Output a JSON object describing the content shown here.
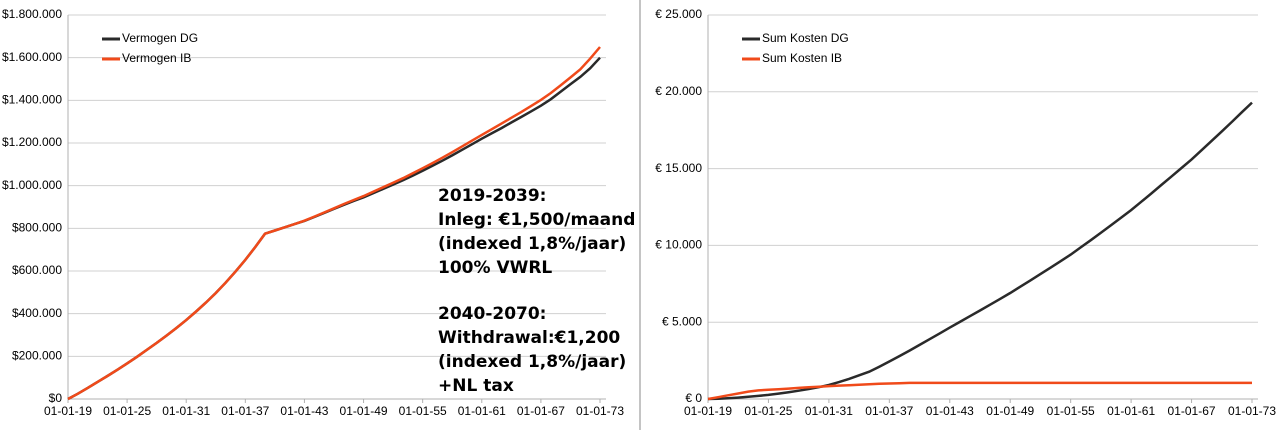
{
  "chart_data": [
    {
      "type": "line",
      "categories": [
        "01-01-19",
        null,
        null,
        null,
        null,
        null,
        "01-01-25",
        null,
        null,
        null,
        null,
        null,
        "01-01-31",
        null,
        null,
        null,
        null,
        null,
        "01-01-37",
        null,
        null,
        null,
        null,
        null,
        "01-01-43",
        null,
        null,
        null,
        null,
        null,
        "01-01-49",
        null,
        null,
        null,
        null,
        null,
        "01-01-55",
        null,
        null,
        null,
        null,
        null,
        "01-01-61",
        null,
        null,
        null,
        null,
        null,
        "01-01-67",
        null,
        null,
        null,
        null,
        null,
        "01-01-73"
      ],
      "series": [
        {
          "name": "Vermogen DG",
          "color": "#2a2a2a",
          "values": [
            0,
            25000,
            52000,
            80000,
            108000,
            137000,
            167000,
            198000,
            230000,
            263000,
            297000,
            333000,
            370000,
            410000,
            452000,
            497000,
            545000,
            597000,
            652000,
            712000,
            775000,
            790000,
            805000,
            820000,
            835000,
            853000,
            872000,
            891000,
            910000,
            928000,
            945000,
            965000,
            985000,
            1005000,
            1025000,
            1047000,
            1070000,
            1093000,
            1117000,
            1142000,
            1168000,
            1194000,
            1220000,
            1245000,
            1270000,
            1296000,
            1322000,
            1348000,
            1375000,
            1405000,
            1440000,
            1475000,
            1510000,
            1550000,
            1600000
          ]
        },
        {
          "name": "Vermogen IB",
          "color": "#f04a1a",
          "values": [
            0,
            25000,
            52000,
            80000,
            108000,
            137000,
            167000,
            198000,
            230000,
            263000,
            297000,
            333000,
            370000,
            410000,
            452000,
            497000,
            545000,
            597000,
            652000,
            712000,
            775000,
            790000,
            805000,
            820000,
            836000,
            855000,
            874000,
            894000,
            914000,
            933000,
            951000,
            972000,
            993000,
            1014000,
            1035000,
            1058000,
            1082000,
            1106000,
            1131000,
            1157000,
            1184000,
            1211000,
            1238000,
            1264000,
            1291000,
            1318000,
            1345000,
            1373000,
            1402000,
            1434000,
            1470000,
            1507000,
            1545000,
            1595000,
            1650000
          ]
        }
      ],
      "ylim": [
        0,
        1800000
      ],
      "yticks": [
        {
          "value": 0,
          "label": "$0"
        },
        {
          "value": 200000,
          "label": "$200.000"
        },
        {
          "value": 400000,
          "label": "$400.000"
        },
        {
          "value": 600000,
          "label": "$600.000"
        },
        {
          "value": 800000,
          "label": "$800.000"
        },
        {
          "value": 1000000,
          "label": "$1.000.000"
        },
        {
          "value": 1200000,
          "label": "$1.200.000"
        },
        {
          "value": 1400000,
          "label": "$1.400.000"
        },
        {
          "value": 1600000,
          "label": "$1.600.000"
        },
        {
          "value": 1800000,
          "label": "$1.800.000"
        }
      ],
      "grid": true,
      "annotations": [
        "2019-2039:",
        "Inleg: €1,500/maand",
        "(indexed 1,8%/jaar)",
        "100% VWRL",
        "2040-2070:",
        "Withdrawal:€1,200",
        "(indexed 1,8%/jaar)",
        "+NL tax"
      ]
    },
    {
      "type": "line",
      "categories": [
        "01-01-19",
        null,
        null,
        null,
        null,
        null,
        "01-01-25",
        null,
        null,
        null,
        null,
        null,
        "01-01-31",
        null,
        null,
        null,
        null,
        null,
        "01-01-37",
        null,
        null,
        null,
        null,
        null,
        "01-01-43",
        null,
        null,
        null,
        null,
        null,
        "01-01-49",
        null,
        null,
        null,
        null,
        null,
        "01-01-55",
        null,
        null,
        null,
        null,
        null,
        "01-01-61",
        null,
        null,
        null,
        null,
        null,
        "01-01-67",
        null,
        null,
        null,
        null,
        null,
        "01-01-73"
      ],
      "series": [
        {
          "name": "Sum Kosten DG",
          "color": "#2a2a2a",
          "values": [
            0,
            20,
            50,
            90,
            140,
            200,
            270,
            350,
            440,
            540,
            650,
            770,
            910,
            1100,
            1310,
            1540,
            1780,
            2100,
            2440,
            2790,
            3150,
            3520,
            3890,
            4270,
            4650,
            5020,
            5390,
            5760,
            6140,
            6520,
            6900,
            7310,
            7720,
            8130,
            8550,
            8970,
            9400,
            9870,
            10340,
            10820,
            11310,
            11800,
            12300,
            12840,
            13380,
            13930,
            14480,
            15040,
            15600,
            16200,
            16810,
            17420,
            18040,
            18670,
            19300
          ]
        },
        {
          "name": "Sum Kosten IB",
          "color": "#f04a1a",
          "values": [
            0,
            120,
            240,
            360,
            480,
            560,
            600,
            640,
            680,
            720,
            760,
            800,
            840,
            870,
            900,
            930,
            960,
            990,
            1010,
            1030,
            1050,
            1050,
            1050,
            1050,
            1050,
            1050,
            1050,
            1050,
            1050,
            1050,
            1050,
            1050,
            1050,
            1050,
            1050,
            1050,
            1050,
            1050,
            1050,
            1050,
            1050,
            1050,
            1050,
            1050,
            1050,
            1050,
            1050,
            1050,
            1050,
            1050,
            1050,
            1050,
            1050,
            1050,
            1050
          ]
        }
      ],
      "ylim": [
        0,
        25000
      ],
      "yticks": [
        {
          "value": 0,
          "label": "€ 0"
        },
        {
          "value": 5000,
          "label": "€ 5.000"
        },
        {
          "value": 10000,
          "label": "€ 10.000"
        },
        {
          "value": 15000,
          "label": "€ 15.000"
        },
        {
          "value": 20000,
          "label": "€ 20.000"
        },
        {
          "value": 25000,
          "label": "€ 25.000"
        }
      ],
      "grid": true
    }
  ]
}
